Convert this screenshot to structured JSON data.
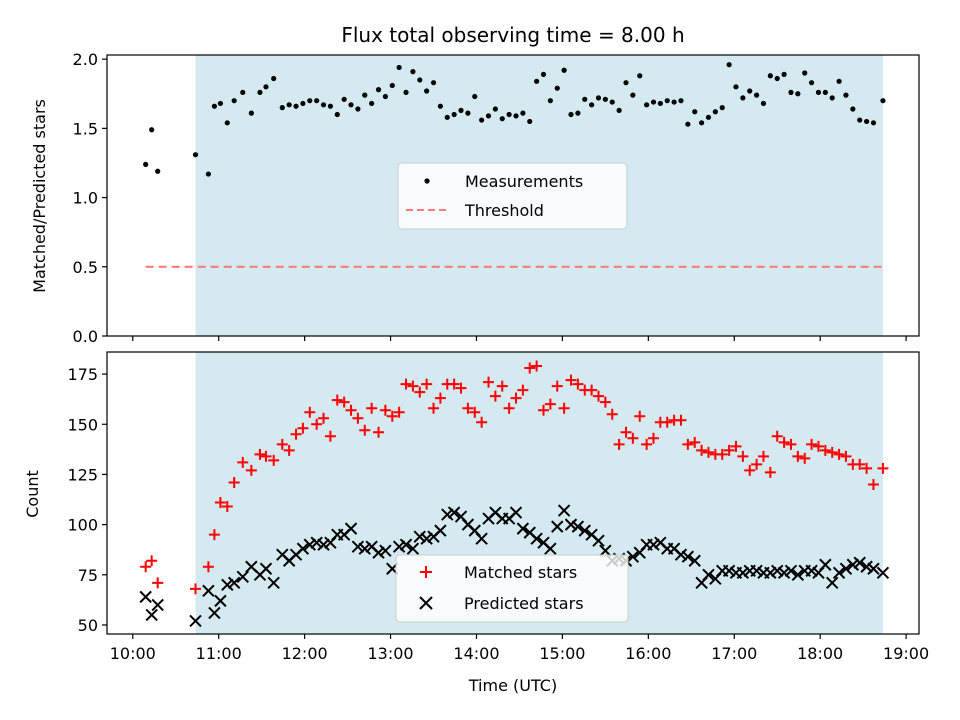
{
  "title": "Flux total observing time = 8.00 h",
  "colors": {
    "shade": "#d4eaf0",
    "threshold": "#ff7a7a",
    "matched": "#ff0000",
    "predicted": "#000000",
    "measurement": "#000000"
  },
  "chart_data": [
    {
      "type": "scatter",
      "name": "ratio",
      "ylabel": "Matched/Predicted stars",
      "xlim": [
        9.7,
        19.15
      ],
      "ylim": [
        0,
        2.03
      ],
      "yticks": [
        0,
        0.5,
        1.0,
        1.5,
        2.0
      ],
      "ytick_labels": [
        "0.0",
        "0.5",
        "1.0",
        "1.5",
        "2.0"
      ],
      "shaded_span": [
        10.73,
        18.73
      ],
      "threshold": {
        "value": 0.5,
        "x_range": [
          10.15,
          18.73
        ]
      },
      "legend": {
        "position": "center",
        "measurements_label": "Measurements",
        "threshold_label": "Threshold"
      },
      "series": [
        {
          "name": "Measurements",
          "x": [
            10.15,
            10.22,
            10.29,
            10.73,
            10.88,
            10.95,
            11.02,
            11.1,
            11.18,
            11.28,
            11.38,
            11.48,
            11.55,
            11.64,
            11.74,
            11.82,
            11.9,
            11.98,
            12.06,
            12.14,
            12.22,
            12.3,
            12.38,
            12.46,
            12.54,
            12.62,
            12.7,
            12.78,
            12.86,
            12.94,
            13.02,
            13.1,
            13.18,
            13.26,
            13.34,
            13.42,
            13.5,
            13.58,
            13.66,
            13.74,
            13.82,
            13.9,
            13.98,
            14.06,
            14.14,
            14.22,
            14.3,
            14.38,
            14.46,
            14.54,
            14.62,
            14.7,
            14.78,
            14.86,
            14.94,
            15.02,
            15.1,
            15.18,
            15.26,
            15.34,
            15.42,
            15.5,
            15.58,
            15.66,
            15.74,
            15.82,
            15.9,
            15.98,
            16.06,
            16.14,
            16.22,
            16.3,
            16.38,
            16.46,
            16.54,
            16.62,
            16.7,
            16.78,
            16.86,
            16.94,
            17.02,
            17.1,
            17.18,
            17.26,
            17.34,
            17.42,
            17.5,
            17.58,
            17.66,
            17.74,
            17.82,
            17.9,
            17.98,
            18.06,
            18.14,
            18.22,
            18.3,
            18.38,
            18.46,
            18.54,
            18.62,
            18.73
          ],
          "y": [
            1.24,
            1.49,
            1.19,
            1.31,
            1.17,
            1.66,
            1.68,
            1.54,
            1.7,
            1.76,
            1.61,
            1.76,
            1.8,
            1.86,
            1.65,
            1.67,
            1.66,
            1.68,
            1.7,
            1.7,
            1.67,
            1.66,
            1.6,
            1.71,
            1.67,
            1.64,
            1.74,
            1.68,
            1.78,
            1.73,
            1.81,
            1.94,
            1.76,
            1.91,
            1.85,
            1.77,
            1.83,
            1.66,
            1.58,
            1.6,
            1.63,
            1.61,
            1.73,
            1.56,
            1.59,
            1.64,
            1.57,
            1.6,
            1.59,
            1.61,
            1.55,
            1.84,
            1.89,
            1.7,
            1.79,
            1.92,
            1.6,
            1.61,
            1.71,
            1.67,
            1.72,
            1.71,
            1.69,
            1.63,
            1.83,
            1.74,
            1.88,
            1.67,
            1.69,
            1.68,
            1.7,
            1.69,
            1.7,
            1.53,
            1.62,
            1.54,
            1.58,
            1.62,
            1.65,
            1.96,
            1.8,
            1.72,
            1.77,
            1.74,
            1.68,
            1.88,
            1.86,
            1.89,
            1.76,
            1.75,
            1.9,
            1.83,
            1.76,
            1.76,
            1.72,
            1.84,
            1.74,
            1.64,
            1.56,
            1.55,
            1.54,
            1.7
          ]
        }
      ]
    },
    {
      "type": "scatter",
      "name": "counts",
      "title": "",
      "xlabel": "Time (UTC)",
      "ylabel": "Count",
      "xlim": [
        9.7,
        19.15
      ],
      "ylim": [
        45.5,
        186
      ],
      "yticks": [
        50,
        75,
        100,
        125,
        150,
        175
      ],
      "ytick_labels": [
        "50",
        "75",
        "100",
        "125",
        "150",
        "175"
      ],
      "xticks": [
        10,
        11,
        12,
        13,
        14,
        15,
        16,
        17,
        18,
        19
      ],
      "xtick_labels": [
        "10:00",
        "11:00",
        "12:00",
        "13:00",
        "14:00",
        "15:00",
        "16:00",
        "17:00",
        "18:00",
        "19:00"
      ],
      "shaded_span": [
        10.73,
        18.73
      ],
      "legend": {
        "position": "bottom-center",
        "matched_label": "Matched stars",
        "predicted_label": "Predicted stars"
      },
      "series": [
        {
          "name": "Matched stars",
          "x": [
            10.15,
            10.22,
            10.29,
            10.73,
            10.88,
            10.95,
            11.02,
            11.1,
            11.18,
            11.28,
            11.38,
            11.48,
            11.55,
            11.64,
            11.74,
            11.82,
            11.9,
            11.98,
            12.06,
            12.14,
            12.22,
            12.3,
            12.38,
            12.46,
            12.54,
            12.62,
            12.7,
            12.78,
            12.86,
            12.94,
            13.02,
            13.1,
            13.18,
            13.26,
            13.34,
            13.42,
            13.5,
            13.58,
            13.66,
            13.74,
            13.82,
            13.9,
            13.98,
            14.06,
            14.14,
            14.22,
            14.3,
            14.38,
            14.46,
            14.54,
            14.62,
            14.7,
            14.78,
            14.86,
            14.94,
            15.02,
            15.1,
            15.18,
            15.26,
            15.34,
            15.42,
            15.5,
            15.58,
            15.66,
            15.74,
            15.82,
            15.9,
            15.98,
            16.06,
            16.14,
            16.22,
            16.3,
            16.38,
            16.46,
            16.54,
            16.62,
            16.7,
            16.78,
            16.86,
            16.94,
            17.02,
            17.1,
            17.18,
            17.26,
            17.34,
            17.42,
            17.5,
            17.58,
            17.66,
            17.74,
            17.82,
            17.9,
            17.98,
            18.06,
            18.14,
            18.22,
            18.3,
            18.38,
            18.46,
            18.54,
            18.62,
            18.73
          ],
          "y": [
            79,
            82,
            71,
            68,
            79,
            95,
            111,
            109,
            121,
            131,
            127,
            135,
            134,
            132,
            140,
            137,
            145,
            148,
            156,
            150,
            153,
            144,
            162,
            161,
            157,
            153,
            147,
            158,
            146,
            157,
            154,
            156,
            170,
            169,
            166,
            170,
            158,
            163,
            170,
            170,
            168,
            158,
            156,
            151,
            171,
            164,
            169,
            158,
            163,
            167,
            178,
            179,
            157,
            160,
            169,
            158,
            172,
            170,
            167,
            167,
            164,
            161,
            155,
            140,
            146,
            143,
            154,
            140,
            143,
            151,
            151,
            152,
            152,
            140,
            141,
            137,
            136,
            135,
            135,
            137,
            139,
            134,
            127,
            130,
            134,
            126,
            144,
            141,
            140,
            134,
            133,
            140,
            139,
            137,
            136,
            135,
            134,
            130,
            130,
            128,
            120,
            128
          ]
        },
        {
          "name": "Predicted stars",
          "x": [
            10.15,
            10.22,
            10.29,
            10.73,
            10.88,
            10.95,
            11.02,
            11.1,
            11.18,
            11.28,
            11.38,
            11.48,
            11.55,
            11.64,
            11.74,
            11.82,
            11.9,
            11.98,
            12.06,
            12.14,
            12.22,
            12.3,
            12.38,
            12.46,
            12.54,
            12.62,
            12.7,
            12.78,
            12.86,
            12.94,
            13.02,
            13.1,
            13.18,
            13.26,
            13.34,
            13.42,
            13.5,
            13.58,
            13.66,
            13.74,
            13.82,
            13.9,
            13.98,
            14.06,
            14.14,
            14.22,
            14.3,
            14.38,
            14.46,
            14.54,
            14.62,
            14.7,
            14.78,
            14.86,
            14.94,
            15.02,
            15.1,
            15.18,
            15.26,
            15.34,
            15.42,
            15.5,
            15.58,
            15.66,
            15.74,
            15.82,
            15.9,
            15.98,
            16.06,
            16.14,
            16.22,
            16.3,
            16.38,
            16.46,
            16.54,
            16.62,
            16.7,
            16.78,
            16.86,
            16.94,
            17.02,
            17.1,
            17.18,
            17.26,
            17.34,
            17.42,
            17.5,
            17.58,
            17.66,
            17.74,
            17.82,
            17.9,
            17.98,
            18.06,
            18.14,
            18.22,
            18.3,
            18.38,
            18.46,
            18.54,
            18.62,
            18.73
          ],
          "y": [
            64,
            55,
            60,
            52,
            67,
            56,
            62,
            70,
            71,
            74,
            79,
            75,
            78,
            71,
            85,
            82,
            85,
            88,
            90,
            91,
            90,
            91,
            95,
            95,
            98,
            89,
            88,
            89,
            86,
            87,
            78,
            89,
            90,
            88,
            94,
            93,
            94,
            97,
            105,
            106,
            104,
            100,
            97,
            93,
            103,
            106,
            103,
            103,
            106,
            98,
            96,
            93,
            91,
            88,
            99,
            107,
            100,
            99,
            97,
            95,
            92,
            87,
            82,
            83,
            82,
            84,
            86,
            90,
            90,
            91,
            88,
            88,
            85,
            84,
            82,
            71,
            75,
            73,
            77,
            77,
            76,
            76,
            77,
            77,
            76,
            76,
            77,
            76,
            77,
            75,
            77,
            77,
            76,
            80,
            71,
            76,
            78,
            80,
            81,
            79,
            78,
            76
          ]
        }
      ]
    }
  ]
}
